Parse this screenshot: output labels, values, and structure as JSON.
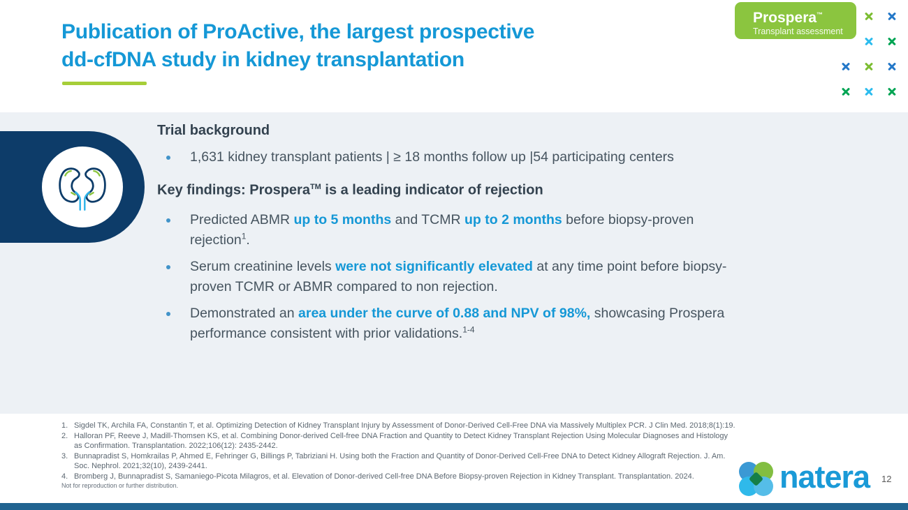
{
  "header": {
    "title_line1": "Publication of ProActive, the largest prospective",
    "title_line2": "dd-cfDNA study in kidney transplantation"
  },
  "badge": {
    "brand": "Prospera",
    "trademark": "™",
    "tagline": "Transplant assessment"
  },
  "decor": {
    "palette": {
      "lime": "#7CBD32",
      "blue": "#2478C8",
      "cyan": "#2CBCEE",
      "green": "#00A453"
    },
    "x_marks": [
      null,
      "lime",
      "blue",
      null,
      "cyan",
      "green",
      "blue",
      "lime",
      "blue",
      "green",
      "cyan",
      "green"
    ]
  },
  "content": {
    "section1_heading": "Trial background",
    "overview_bullet": "1,631 kidney transplant patients | ≥ 18 months follow up |54 participating centers",
    "section2": {
      "pre": "Key findings: Prospera",
      "sup": "TM",
      "post": " is a leading indicator of rejection"
    },
    "findings": [
      {
        "segments": [
          {
            "text": "Predicted ABMR ",
            "style": "normal"
          },
          {
            "text": "up to 5 months",
            "style": "highlight"
          },
          {
            "text": " and TCMR ",
            "style": "normal"
          },
          {
            "text": "up to 2 months",
            "style": "highlight"
          },
          {
            "text": " before biopsy-proven rejection",
            "style": "normal"
          },
          {
            "text": "1",
            "style": "sup"
          },
          {
            "text": ".",
            "style": "normal"
          }
        ]
      },
      {
        "segments": [
          {
            "text": "Serum creatinine levels ",
            "style": "normal"
          },
          {
            "text": "were not significantly elevated",
            "style": "highlight"
          },
          {
            "text": " at any time point before biopsy-proven TCMR or ABMR compared to non rejection.",
            "style": "normal"
          }
        ]
      },
      {
        "segments": [
          {
            "text": "Demonstrated an ",
            "style": "normal"
          },
          {
            "text": "area under the curve of 0.88 and NPV of 98%,",
            "style": "highlight"
          },
          {
            "text": " showcasing Prospera performance consistent with prior validations.",
            "style": "normal"
          },
          {
            "text": "1-4",
            "style": "sup"
          }
        ]
      }
    ]
  },
  "references": {
    "items": [
      {
        "num": "1.",
        "text": "Sigdel TK, Archila FA, Constantin T, et al. Optimizing Detection of Kidney Transplant Injury by Assessment of Donor-Derived Cell-Free DNA via Massively Multiplex PCR. J Clin Med. 2018;8(1):19."
      },
      {
        "num": "2.",
        "text": "Halloran PF, Reeve J, Madill-Thomsen KS, et al. Combining Donor-derived Cell-free DNA Fraction and Quantity to Detect Kidney Transplant Rejection Using Molecular Diagnoses and Histology as Confirmation. Transplantation. 2022;106(12): 2435-2442."
      },
      {
        "num": "3.",
        "text": "Bunnapradist S, Homkrailas P, Ahmed E, Fehringer G, Billings P, Tabriziani H. Using both the Fraction and Quantity of Donor-Derived Cell-Free DNA to Detect Kidney Allograft Rejection. J. Am. Soc. Nephrol. 2021;32(10), 2439-2441."
      },
      {
        "num": "4.",
        "text": "Bromberg J, Bunnapradist S, Samaniego-Picota Milagros, et al. Elevation of Donor-derived Cell-free DNA Before Biopsy-proven Rejection in Kidney Transplant. Transplantation. 2024."
      }
    ],
    "disclaimer": "Not for reproduction or further distribution."
  },
  "footer": {
    "logo_text": "natera",
    "page_number": "12"
  },
  "colors": {
    "title_blue": "#1598D6",
    "badge_green": "#8BC53F",
    "underline_green": "#A6CE38",
    "navy_pill": "#0D3C69",
    "band_background": "#EDF1F5",
    "bottom_bar": "#206390",
    "highlight_blue": "#1598D6"
  }
}
